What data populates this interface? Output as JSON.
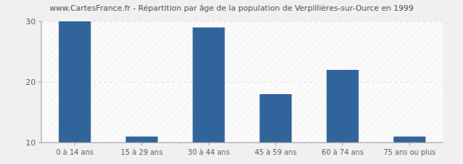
{
  "chart_data": {
    "type": "bar",
    "title": "www.CartesFrance.fr - Répartition par âge de la population de Verpillières-sur-Ource en 1999",
    "categories": [
      "0 à 14 ans",
      "15 à 29 ans",
      "30 à 44 ans",
      "45 à 59 ans",
      "60 à 74 ans",
      "75 ans ou plus"
    ],
    "values": [
      30,
      11,
      29,
      18,
      22,
      11
    ],
    "color": "#31649a",
    "ylim": [
      10,
      30
    ],
    "yticks": [
      10,
      20,
      30
    ],
    "grid": true
  }
}
